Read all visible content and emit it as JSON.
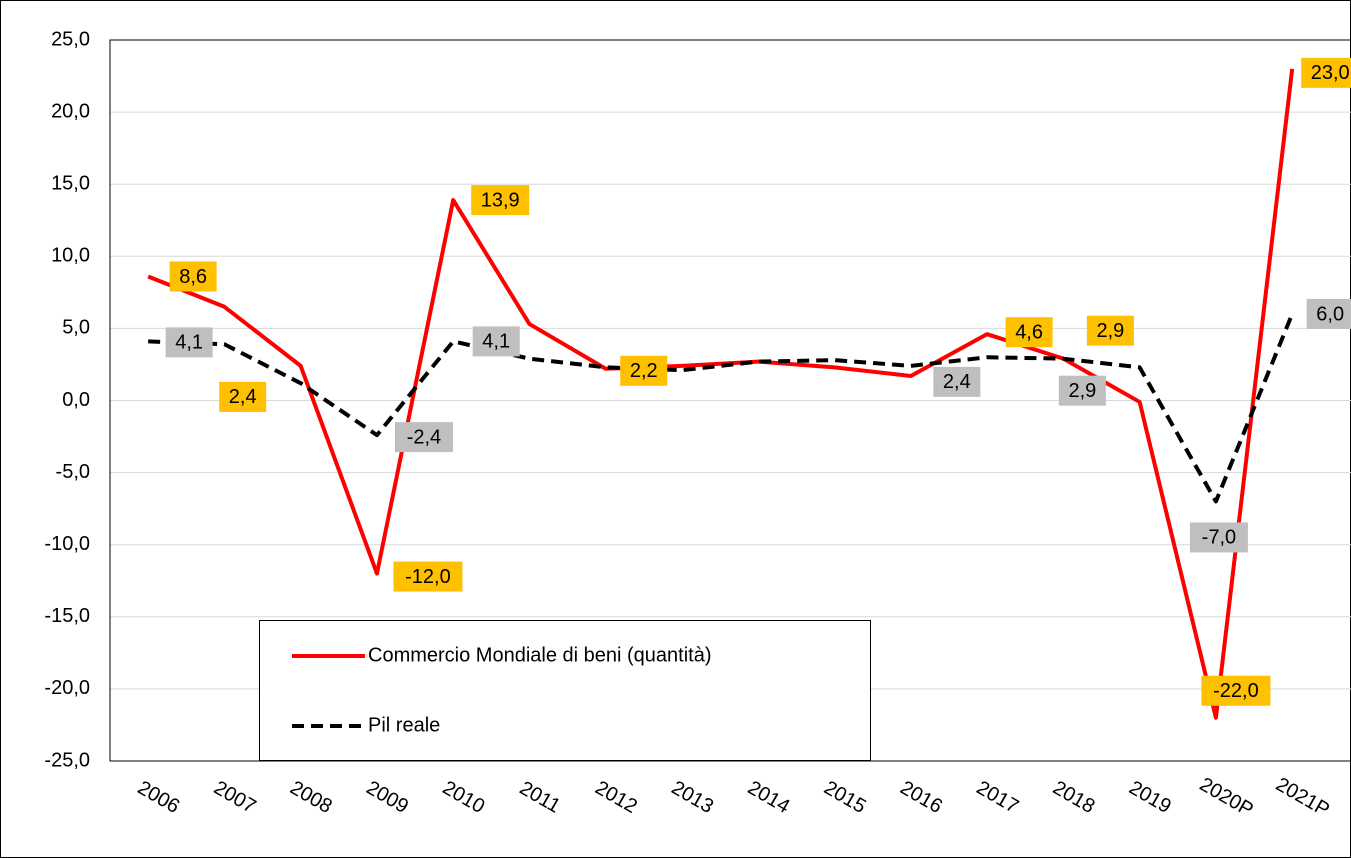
{
  "chart_data": {
    "type": "line",
    "categories": [
      "2006",
      "2007",
      "2008",
      "2009",
      "2010",
      "2011",
      "2012",
      "2013",
      "2014",
      "2015",
      "2016",
      "2017",
      "2018",
      "2019",
      "2020P",
      "2021P"
    ],
    "series": [
      {
        "name": "Commercio Mondiale di beni (quantità)",
        "color": "#ff0000",
        "dash": false,
        "label_color": "#ffc000",
        "values": [
          8.6,
          6.5,
          2.4,
          -12.0,
          13.9,
          5.3,
          2.2,
          2.4,
          2.7,
          2.3,
          1.7,
          4.6,
          2.9,
          -0.1,
          -22.0,
          23.0
        ],
        "value_labels": [
          "8,6",
          null,
          "2,4",
          "-12,0",
          "13,9",
          null,
          "2,2",
          null,
          null,
          null,
          null,
          "4,6",
          "2,9",
          null,
          "-22,0",
          "23,0"
        ]
      },
      {
        "name": "Pil reale",
        "color": "#000000",
        "dash": true,
        "label_color": "#bfbfbf",
        "values": [
          4.1,
          3.9,
          1.2,
          -2.4,
          4.1,
          2.9,
          2.3,
          2.1,
          2.7,
          2.8,
          2.4,
          3.0,
          2.9,
          2.3,
          -7.0,
          6.0
        ],
        "value_labels": [
          "4,1",
          null,
          null,
          "-2,4",
          "4,1",
          null,
          null,
          null,
          null,
          null,
          "2,4",
          null,
          "2,9",
          null,
          "-7,0",
          "6,0"
        ]
      }
    ],
    "ylim": [
      -25,
      25
    ],
    "yticks": [
      {
        "value": 25,
        "label": "25,0"
      },
      {
        "value": 20,
        "label": "20,0"
      },
      {
        "value": 15,
        "label": "15,0"
      },
      {
        "value": 10,
        "label": "10,0"
      },
      {
        "value": 5,
        "label": "5,0"
      },
      {
        "value": 0,
        "label": "0,0"
      },
      {
        "value": -5,
        "label": "-5,0"
      },
      {
        "value": -10,
        "label": "-10,0"
      },
      {
        "value": -15,
        "label": "-15,0"
      },
      {
        "value": -20,
        "label": "-20,0"
      },
      {
        "value": -25,
        "label": "-25,0"
      }
    ],
    "grid": true
  }
}
